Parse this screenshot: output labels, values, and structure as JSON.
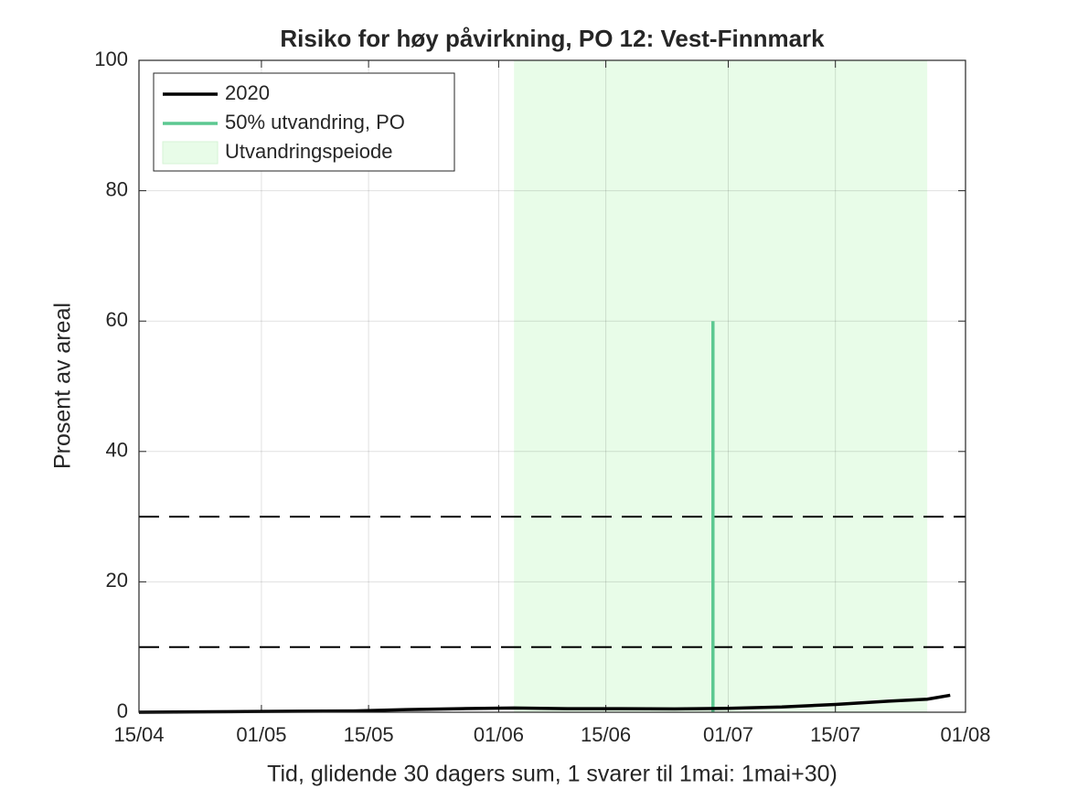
{
  "chart_data": {
    "type": "line",
    "title": "Risiko for høy påvirkning, PO 12: Vest-Finnmark",
    "xlabel": "Tid, glidende 30 dagers sum, 1 svarer til 1mai: 1mai+30)",
    "ylabel": "Prosent av areal",
    "x": [
      "15/04",
      "22/04",
      "29/04",
      "06/05",
      "13/05",
      "20/05",
      "27/05",
      "03/06",
      "10/06",
      "17/06",
      "24/06",
      "01/07",
      "08/07",
      "15/07",
      "22/07",
      "27/07",
      "30/07"
    ],
    "series": [
      {
        "name": "2020",
        "color": "#000000",
        "values": [
          0.0,
          0.05,
          0.1,
          0.15,
          0.2,
          0.4,
          0.55,
          0.65,
          0.55,
          0.55,
          0.5,
          0.6,
          0.8,
          1.2,
          1.7,
          2.0,
          2.6
        ]
      }
    ],
    "vline": {
      "name": "50% utvandring, PO",
      "color": "#5cc891",
      "x": "29/06",
      "y": [
        0,
        60
      ]
    },
    "span": {
      "name": "Utvandringspeiode",
      "color": "#e8fce8",
      "x": [
        "03/06",
        "27/07"
      ]
    },
    "hlines": [
      10,
      30
    ],
    "xlim": [
      "15/04",
      "01/08"
    ],
    "xticks": [
      "15/04",
      "01/05",
      "15/05",
      "01/06",
      "15/06",
      "01/07",
      "15/07",
      "01/08"
    ],
    "ylim": [
      0,
      100
    ],
    "yticks": [
      0,
      20,
      40,
      60,
      80,
      100
    ],
    "grid": true,
    "legend": "upper left"
  }
}
